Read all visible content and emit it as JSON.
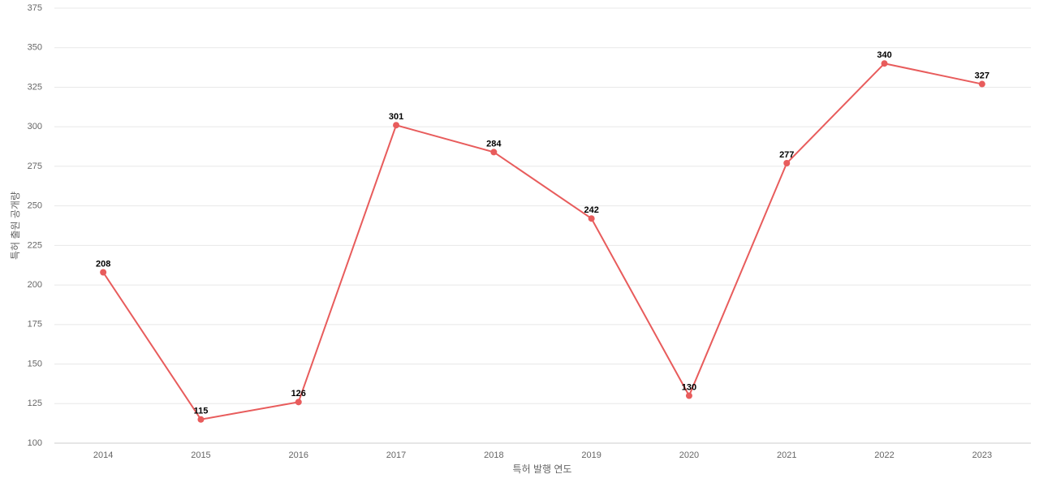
{
  "chart_data": {
    "type": "line",
    "x_label": "특허 발행 연도",
    "y_label": "특허 출원 공개량",
    "categories": [
      "2014",
      "2015",
      "2016",
      "2017",
      "2018",
      "2019",
      "2020",
      "2021",
      "2022",
      "2023"
    ],
    "series": [
      {
        "name": "특허 출원 공개량",
        "color": "#e85c5c",
        "values": [
          208,
          115,
          126,
          301,
          284,
          242,
          130,
          277,
          340,
          327
        ]
      }
    ],
    "ylim": [
      100,
      375
    ],
    "yticks": [
      100,
      125,
      150,
      175,
      200,
      225,
      250,
      275,
      300,
      325,
      350,
      375
    ],
    "grid": true
  }
}
